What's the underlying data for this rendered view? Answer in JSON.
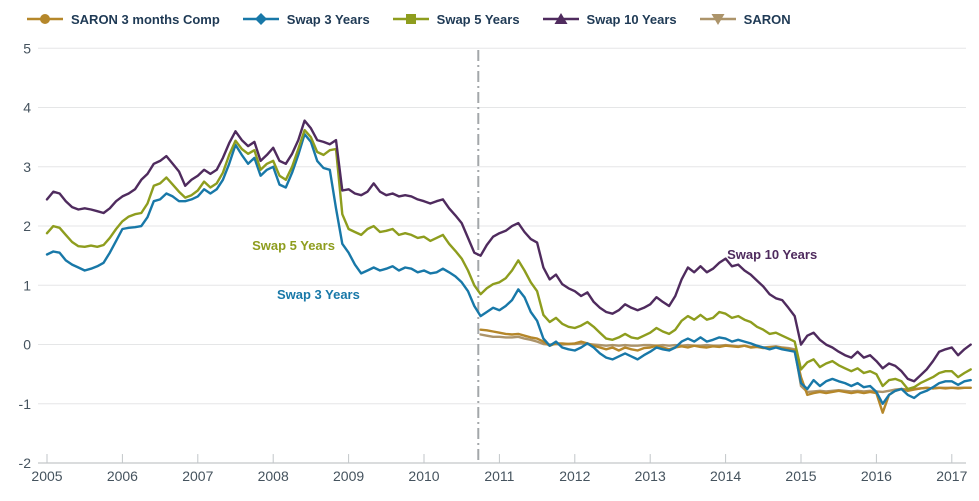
{
  "colors": {
    "background": "#ffffff",
    "legend_text": "#1f3a55",
    "axis_text": "#45535e",
    "gridline": "#e5e6e7",
    "axis_line": "#b5b8bb",
    "tick": "#c2c6c9",
    "reference_line": "#a3a7aa"
  },
  "legend_title": "",
  "chart_data": {
    "type": "line",
    "title": "",
    "xlabel": "",
    "ylabel": "",
    "x_axis": {
      "ticks": [
        "2005",
        "2006",
        "2007",
        "2008",
        "2009",
        "2010",
        "2011",
        "2012",
        "2013",
        "2014",
        "2015",
        "2016",
        "2017"
      ],
      "range": [
        2004.88,
        2017.35
      ]
    },
    "y_axis": {
      "ticks": [
        5,
        4,
        3,
        2,
        1,
        0,
        -1,
        -2
      ],
      "range": [
        -2,
        5
      ],
      "grid": true
    },
    "reference_line": {
      "x": 2010.72,
      "style": "dash-dot",
      "color": "#a3a7aa"
    },
    "annotations": [
      {
        "text": "Swap 5 Years",
        "color": "#8e9d1e",
        "x": 2007.72,
        "y": 1.66
      },
      {
        "text": "Swap 3 Years",
        "color": "#1878a8",
        "x": 2008.05,
        "y": 0.84
      },
      {
        "text": "Swap 10 Years",
        "color": "#4f2b5e",
        "x": 2014.02,
        "y": 1.51
      }
    ],
    "series": [
      {
        "name": "SARON 3 months Comp",
        "marker": "circle",
        "color": "#b5872a",
        "x_start": 2010.75,
        "x_step_months": 1,
        "draw_order": 1,
        "values": [
          0.25,
          0.24,
          0.22,
          0.2,
          0.18,
          0.17,
          0.18,
          0.15,
          0.12,
          0.1,
          0.05,
          -0.02,
          0.02,
          0.02,
          0.01,
          0.02,
          0.05,
          0.02,
          -0.02,
          -0.05,
          -0.08,
          -0.05,
          -0.1,
          -0.05,
          -0.08,
          -0.1,
          -0.06,
          -0.05,
          -0.02,
          -0.05,
          -0.08,
          -0.05,
          -0.03,
          -0.05,
          -0.02,
          -0.04,
          -0.05,
          -0.03,
          -0.04,
          -0.02,
          -0.03,
          -0.04,
          -0.02,
          -0.05,
          -0.04,
          -0.06,
          -0.05,
          -0.04,
          -0.06,
          -0.08,
          -0.1,
          -0.55,
          -0.85,
          -0.82,
          -0.8,
          -0.82,
          -0.8,
          -0.78,
          -0.8,
          -0.82,
          -0.8,
          -0.82,
          -0.8,
          -0.82,
          -1.15,
          -0.85,
          -0.78,
          -0.75,
          -0.78,
          -0.76,
          -0.74,
          -0.73,
          -0.74,
          -0.73,
          -0.74,
          -0.73,
          -0.74,
          -0.73,
          -0.73
        ]
      },
      {
        "name": "Swap 3 Years",
        "marker": "diamond",
        "color": "#1878a8",
        "x_start": 2005.0,
        "x_step_months": 1,
        "draw_order": 2,
        "values": [
          1.52,
          1.57,
          1.55,
          1.42,
          1.35,
          1.3,
          1.25,
          1.28,
          1.32,
          1.38,
          1.55,
          1.75,
          1.95,
          1.97,
          1.98,
          2.0,
          2.15,
          2.42,
          2.45,
          2.55,
          2.5,
          2.42,
          2.42,
          2.45,
          2.5,
          2.62,
          2.55,
          2.62,
          2.78,
          3.05,
          3.37,
          3.2,
          3.05,
          3.15,
          2.85,
          2.95,
          3.0,
          2.7,
          2.65,
          2.9,
          3.2,
          3.55,
          3.42,
          3.1,
          2.98,
          2.95,
          2.3,
          1.7,
          1.55,
          1.35,
          1.2,
          1.25,
          1.3,
          1.25,
          1.28,
          1.32,
          1.25,
          1.3,
          1.28,
          1.22,
          1.25,
          1.2,
          1.22,
          1.28,
          1.22,
          1.15,
          1.05,
          0.9,
          0.65,
          0.48,
          0.55,
          0.62,
          0.58,
          0.65,
          0.75,
          0.93,
          0.8,
          0.55,
          0.4,
          0.1,
          -0.02,
          0.05,
          -0.05,
          -0.08,
          -0.1,
          -0.05,
          0.02,
          -0.05,
          -0.15,
          -0.22,
          -0.25,
          -0.2,
          -0.15,
          -0.2,
          -0.25,
          -0.18,
          -0.12,
          -0.05,
          -0.08,
          -0.1,
          -0.05,
          0.05,
          0.1,
          0.05,
          0.12,
          0.05,
          0.08,
          0.12,
          0.1,
          0.05,
          0.08,
          0.05,
          0.02,
          -0.02,
          -0.05,
          -0.08,
          -0.05,
          -0.08,
          -0.1,
          -0.12,
          -0.65,
          -0.75,
          -0.6,
          -0.7,
          -0.62,
          -0.58,
          -0.62,
          -0.65,
          -0.7,
          -0.65,
          -0.72,
          -0.7,
          -0.8,
          -1.0,
          -0.85,
          -0.78,
          -0.75,
          -0.85,
          -0.9,
          -0.82,
          -0.78,
          -0.72,
          -0.65,
          -0.62,
          -0.62,
          -0.68,
          -0.62,
          -0.6
        ]
      },
      {
        "name": "Swap 5 Years",
        "marker": "square",
        "color": "#8e9d1e",
        "x_start": 2005.0,
        "x_step_months": 1,
        "draw_order": 3,
        "values": [
          1.88,
          2.0,
          1.97,
          1.85,
          1.73,
          1.66,
          1.65,
          1.67,
          1.65,
          1.68,
          1.8,
          1.95,
          2.08,
          2.16,
          2.2,
          2.22,
          2.38,
          2.68,
          2.72,
          2.82,
          2.7,
          2.58,
          2.48,
          2.52,
          2.6,
          2.75,
          2.65,
          2.72,
          2.9,
          3.2,
          3.44,
          3.3,
          3.22,
          3.28,
          2.95,
          3.05,
          3.1,
          2.85,
          2.78,
          3.0,
          3.3,
          3.62,
          3.5,
          3.25,
          3.2,
          3.28,
          3.3,
          2.2,
          1.95,
          1.9,
          1.85,
          1.95,
          2.0,
          1.9,
          1.92,
          1.95,
          1.85,
          1.88,
          1.85,
          1.8,
          1.82,
          1.75,
          1.8,
          1.85,
          1.7,
          1.58,
          1.45,
          1.25,
          1.0,
          0.85,
          0.95,
          1.02,
          1.05,
          1.12,
          1.25,
          1.42,
          1.25,
          1.05,
          0.9,
          0.5,
          0.38,
          0.45,
          0.35,
          0.3,
          0.28,
          0.32,
          0.38,
          0.3,
          0.2,
          0.1,
          0.08,
          0.12,
          0.18,
          0.12,
          0.1,
          0.15,
          0.2,
          0.28,
          0.22,
          0.18,
          0.25,
          0.4,
          0.48,
          0.42,
          0.5,
          0.42,
          0.45,
          0.55,
          0.52,
          0.45,
          0.48,
          0.42,
          0.38,
          0.3,
          0.25,
          0.18,
          0.2,
          0.15,
          0.1,
          0.05,
          -0.42,
          -0.3,
          -0.25,
          -0.38,
          -0.32,
          -0.28,
          -0.35,
          -0.4,
          -0.45,
          -0.4,
          -0.48,
          -0.45,
          -0.5,
          -0.7,
          -0.6,
          -0.58,
          -0.62,
          -0.75,
          -0.72,
          -0.65,
          -0.6,
          -0.55,
          -0.48,
          -0.45,
          -0.45,
          -0.55,
          -0.48,
          -0.42
        ]
      },
      {
        "name": "Swap 10 Years",
        "marker": "triangle-up",
        "color": "#4f2b5e",
        "x_start": 2005.0,
        "x_step_months": 1,
        "draw_order": 4,
        "values": [
          2.45,
          2.58,
          2.55,
          2.42,
          2.32,
          2.28,
          2.3,
          2.28,
          2.25,
          2.22,
          2.3,
          2.42,
          2.5,
          2.55,
          2.62,
          2.78,
          2.88,
          3.05,
          3.1,
          3.18,
          3.05,
          2.92,
          2.68,
          2.78,
          2.85,
          2.95,
          2.88,
          2.95,
          3.15,
          3.4,
          3.6,
          3.45,
          3.35,
          3.42,
          3.1,
          3.2,
          3.32,
          3.1,
          3.05,
          3.22,
          3.45,
          3.78,
          3.65,
          3.45,
          3.42,
          3.38,
          3.45,
          2.6,
          2.62,
          2.55,
          2.52,
          2.58,
          2.72,
          2.58,
          2.52,
          2.55,
          2.5,
          2.52,
          2.5,
          2.45,
          2.42,
          2.38,
          2.42,
          2.45,
          2.3,
          2.18,
          2.05,
          1.8,
          1.55,
          1.5,
          1.68,
          1.82,
          1.88,
          1.92,
          2.0,
          2.05,
          1.9,
          1.78,
          1.72,
          1.3,
          1.1,
          1.18,
          1.02,
          0.95,
          0.9,
          0.82,
          0.88,
          0.72,
          0.62,
          0.55,
          0.52,
          0.58,
          0.68,
          0.62,
          0.58,
          0.62,
          0.68,
          0.8,
          0.72,
          0.65,
          0.82,
          1.1,
          1.3,
          1.22,
          1.32,
          1.22,
          1.28,
          1.38,
          1.45,
          1.32,
          1.35,
          1.25,
          1.18,
          1.08,
          0.98,
          0.85,
          0.78,
          0.75,
          0.62,
          0.48,
          0.0,
          0.15,
          0.2,
          0.08,
          0.0,
          -0.05,
          -0.12,
          -0.18,
          -0.22,
          -0.12,
          -0.22,
          -0.18,
          -0.28,
          -0.4,
          -0.32,
          -0.36,
          -0.45,
          -0.58,
          -0.62,
          -0.52,
          -0.42,
          -0.28,
          -0.12,
          -0.08,
          -0.05,
          -0.18,
          -0.08,
          0.0
        ]
      },
      {
        "name": "SARON",
        "marker": "triangle-down",
        "color": "#ac946a",
        "x_start": 2010.75,
        "x_step_months": 1,
        "draw_order": 0,
        "values": [
          0.17,
          0.15,
          0.13,
          0.13,
          0.12,
          0.12,
          0.13,
          0.1,
          0.08,
          0.05,
          0.01,
          0.0,
          0.01,
          0.0,
          0.01,
          0.01,
          0.02,
          0.01,
          0.0,
          -0.01,
          -0.02,
          -0.01,
          -0.02,
          -0.01,
          -0.02,
          -0.02,
          -0.01,
          -0.01,
          -0.02,
          -0.01,
          -0.02,
          -0.01,
          -0.02,
          -0.01,
          -0.02,
          -0.02,
          -0.01,
          -0.02,
          -0.02,
          -0.01,
          -0.02,
          -0.03,
          -0.02,
          -0.04,
          -0.03,
          -0.05,
          -0.04,
          -0.03,
          -0.05,
          -0.06,
          -0.08,
          -0.7,
          -0.8,
          -0.79,
          -0.78,
          -0.79,
          -0.78,
          -0.77,
          -0.78,
          -0.79,
          -0.78,
          -0.79,
          -0.78,
          -0.79,
          -0.8,
          -0.78,
          -0.76,
          -0.75,
          -0.76,
          -0.75,
          -0.74,
          -0.73,
          -0.74,
          -0.73,
          -0.73,
          -0.73,
          -0.73,
          -0.73,
          -0.73
        ]
      }
    ]
  }
}
